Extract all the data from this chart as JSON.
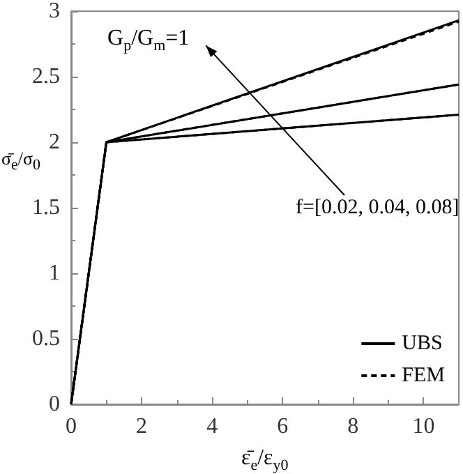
{
  "chart_data": {
    "type": "line",
    "xlabel": "ε̄$_{e}$/ε$_{y0}$",
    "ylabel": "σ̄$_{e}$/σ$_{0}$",
    "annotations": [
      "G$_{p}$/G$_{m}$=1",
      "f=[0.02, 0.04, 0.08]"
    ],
    "series": [
      {
        "name": "UBS",
        "color": "#000000",
        "line_style": "solid",
        "x": [
          0,
          1,
          11
        ],
        "values": [
          0,
          2,
          2.21
        ]
      },
      {
        "color": "#000000",
        "line_style": "solid",
        "x": [
          0,
          1,
          11
        ],
        "values": [
          0,
          2,
          2.44
        ]
      },
      {
        "color": "#000000",
        "line_style": "solid",
        "x": [
          0,
          1,
          11
        ],
        "values": [
          0,
          2,
          2.93
        ]
      },
      {
        "name": "FEM",
        "color": "#000000",
        "line_style": "dashed",
        "x": [
          0,
          1,
          11
        ],
        "values": [
          0,
          2,
          2.21
        ]
      },
      {
        "color": "#000000",
        "line_style": "dashed",
        "x": [
          0,
          1,
          11
        ],
        "values": [
          0,
          2,
          2.44
        ]
      },
      {
        "color": "#000000",
        "line_style": "dashed",
        "x": [
          0,
          1,
          11
        ],
        "values": [
          0,
          2,
          2.92
        ]
      }
    ],
    "xlim": [
      0,
      11
    ],
    "xticks": [
      0,
      2,
      4,
      6,
      8,
      10
    ],
    "ylim": [
      0,
      3
    ],
    "yticks": [
      0,
      0.5,
      1,
      1.5,
      2,
      2.5,
      3
    ],
    "grid": false,
    "legend": "bottom right",
    "marker": "none"
  }
}
